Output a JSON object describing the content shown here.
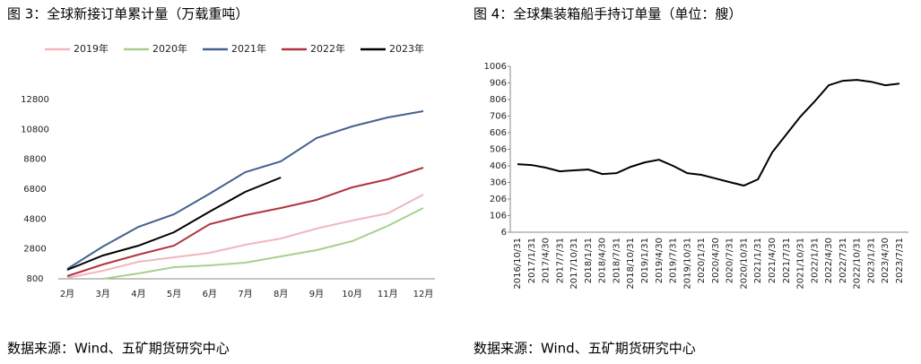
{
  "chart_data": [
    {
      "type": "line",
      "title": "图 3：全球新接订单累计量（万载重吨）",
      "categories": [
        "2月",
        "3月",
        "4月",
        "5月",
        "6月",
        "7月",
        "8月",
        "9月",
        "10月",
        "11月",
        "12月"
      ],
      "series": [
        {
          "name": "2019年",
          "color": "#f2b6bf",
          "values": [
            860,
            1340,
            1940,
            2240,
            2540,
            3080,
            3500,
            4160,
            4700,
            5180,
            6440
          ]
        },
        {
          "name": "2020年",
          "color": "#a8d08d",
          "values": [
            null,
            800,
            1160,
            1580,
            1700,
            1880,
            2300,
            2720,
            3320,
            4340,
            5540
          ]
        },
        {
          "name": "2021年",
          "color": "#44618f",
          "values": [
            1460,
            2960,
            4280,
            5120,
            6500,
            7940,
            8660,
            10220,
            11000,
            11600,
            12020
          ]
        },
        {
          "name": "2022年",
          "color": "#b0353f",
          "values": [
            980,
            1760,
            2420,
            3020,
            4460,
            5060,
            5540,
            6080,
            6920,
            7460,
            8240
          ]
        },
        {
          "name": "2023年",
          "color": "#000000",
          "values": [
            1400,
            2360,
            3020,
            3920,
            5300,
            6620,
            7580,
            null,
            null,
            null,
            null
          ]
        }
      ],
      "ylim": [
        800,
        12800
      ],
      "yticks": [
        800,
        2800,
        4800,
        6800,
        8800,
        10800,
        12800
      ],
      "legend": "top",
      "source": "数据来源：Wind、五矿期货研究中心"
    },
    {
      "type": "line",
      "title": "图 4：全球集装箱船手持订单量（单位：艘）",
      "categories": [
        "2016/10/31",
        "2017/1/31",
        "2017/4/30",
        "2017/7/31",
        "2017/10/31",
        "2018/1/31",
        "2018/4/30",
        "2018/7/31",
        "2018/10/31",
        "2019/1/31",
        "2019/4/30",
        "2019/7/31",
        "2019/10/31",
        "2020/1/31",
        "2020/4/30",
        "2020/7/31",
        "2020/10/31",
        "2021/1/31",
        "2021/4/30",
        "2021/7/31",
        "2021/10/31",
        "2022/1/31",
        "2022/4/30",
        "2022/7/31",
        "2022/10/31",
        "2023/1/31",
        "2023/4/30",
        "2023/7/31"
      ],
      "values": [
        416,
        411,
        395,
        373,
        379,
        384,
        357,
        362,
        400,
        427,
        443,
        406,
        362,
        352,
        330,
        308,
        287,
        325,
        487,
        595,
        703,
        794,
        892,
        919,
        924,
        913,
        892,
        902
      ],
      "color": "#000000",
      "ylim": [
        6,
        1006
      ],
      "yticks": [
        6,
        106,
        206,
        306,
        406,
        506,
        606,
        706,
        806,
        906,
        1006
      ],
      "source": "数据来源：Wind、五矿期货研究中心"
    }
  ]
}
